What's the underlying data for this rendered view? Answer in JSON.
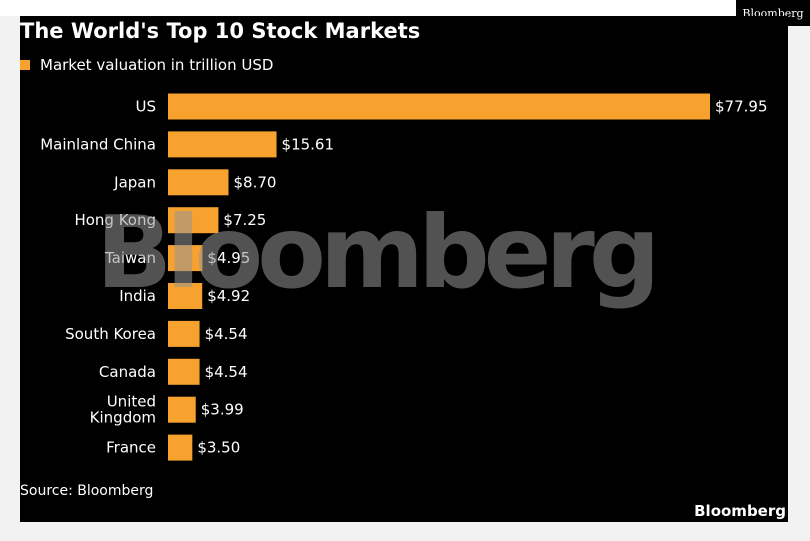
{
  "corner_tag": "Bloomberg",
  "chart_data": {
    "type": "bar",
    "orientation": "horizontal",
    "title": "The World's Top 10 Stock Markets",
    "categories": [
      "US",
      "Mainland China",
      "Japan",
      "Hong Kong",
      "Taiwan",
      "India",
      "South Korea",
      "Canada",
      "United Kingdom",
      "France"
    ],
    "category_lines": [
      [
        "US"
      ],
      [
        "Mainland China"
      ],
      [
        "Japan"
      ],
      [
        "Hong Kong"
      ],
      [
        "Taiwan"
      ],
      [
        "India"
      ],
      [
        "South Korea"
      ],
      [
        "Canada"
      ],
      [
        "United",
        "Kingdom"
      ],
      [
        "France"
      ]
    ],
    "series": [
      {
        "name": "Market valuation in trillion USD",
        "values": [
          77.95,
          15.61,
          8.7,
          7.25,
          4.95,
          4.92,
          4.54,
          4.54,
          3.99,
          3.5
        ],
        "labels": [
          "$77.95",
          "$15.61",
          "$8.70",
          "$7.25",
          "$4.95",
          "$4.92",
          "$4.54",
          "$4.54",
          "$3.99",
          "$3.50"
        ]
      }
    ],
    "xlim": [
      0,
      77.95
    ],
    "grid": false,
    "legend_position": "top-left",
    "colors": {
      "bar": "#f7a12e",
      "background": "#000000",
      "text": "#ffffff"
    },
    "watermark": "Bloomberg",
    "source": "Source: Bloomberg",
    "brand": "Bloomberg"
  }
}
